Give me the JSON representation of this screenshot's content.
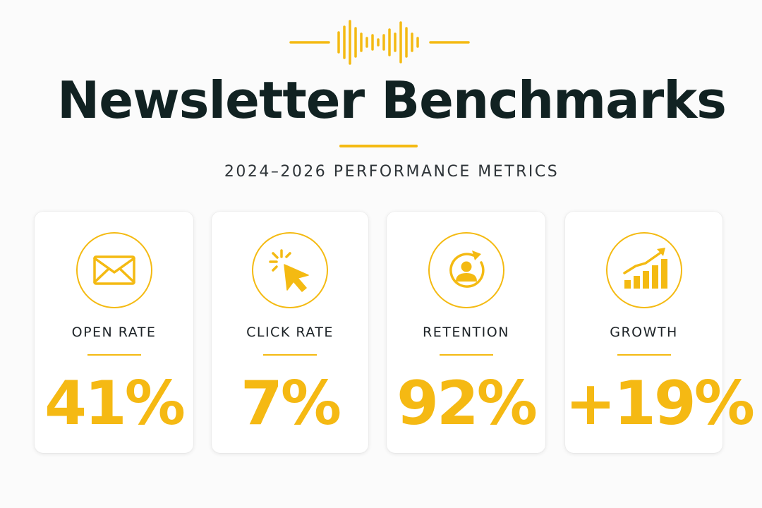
{
  "header": {
    "title": "Newsletter Benchmarks",
    "subtitle": "2024–2026 PERFORMANCE METRICS"
  },
  "colors": {
    "accent": "#f4ba12",
    "title": "#112222",
    "background": "#fbfbfb",
    "card": "#ffffff"
  },
  "metrics": [
    {
      "label": "OPEN RATE",
      "value": "41%",
      "icon": "envelope-icon"
    },
    {
      "label": "CLICK RATE",
      "value": "7%",
      "icon": "cursor-click-icon"
    },
    {
      "label": "RETENTION",
      "value": "92%",
      "icon": "user-refresh-icon"
    },
    {
      "label": "GROWTH",
      "value": "+19%",
      "icon": "bar-chart-growth-icon"
    }
  ]
}
